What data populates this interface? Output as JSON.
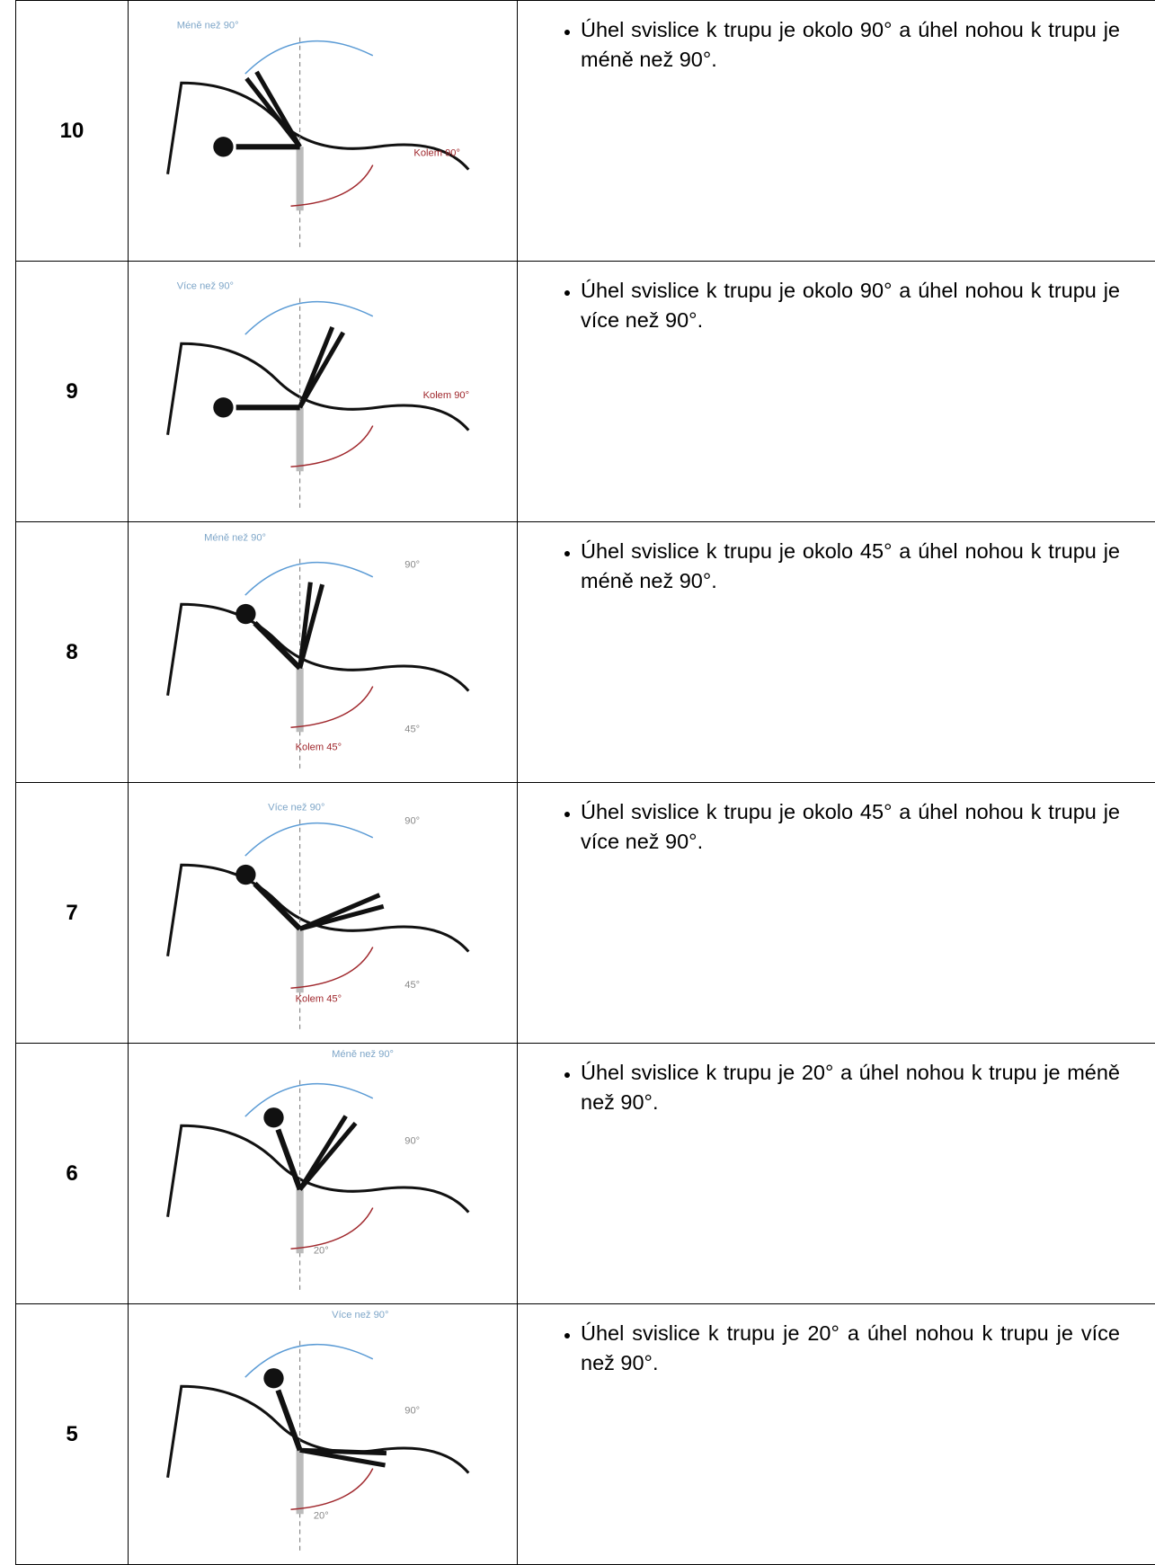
{
  "table": {
    "rows": [
      {
        "score": "10",
        "labels": [
          "Méně než 90°",
          "Kolem 90°"
        ],
        "text": "Úhel svislice k trupu je okolo 90° a úhel nohou k trupu je méně než 90°."
      },
      {
        "score": "9",
        "labels": [
          "Více než 90°",
          "Kolem 90°"
        ],
        "text": "Úhel svislice k trupu je okolo 90° a úhel nohou k trupu je více než 90°."
      },
      {
        "score": "8",
        "labels": [
          "Méně než 90°",
          "90°",
          "45°",
          "Kolem 45°"
        ],
        "text": "Úhel svislice k trupu je okolo 45° a úhel nohou k trupu je méně než 90°."
      },
      {
        "score": "7",
        "labels": [
          "Více než 90°",
          "90°",
          "45°",
          "Kolem 45°"
        ],
        "text": "Úhel svislice k trupu je okolo 45° a úhel nohou k trupu je více než 90°."
      },
      {
        "score": "6",
        "labels": [
          "Méně než 90°",
          "90°",
          "20°"
        ],
        "text": "Úhel svislice k trupu je  20° a úhel nohou k trupu je méně než 90°."
      },
      {
        "score": "5",
        "labels": [
          "Více než 90°",
          "90°",
          "20°"
        ],
        "text": "Úhel svislice k trupu je 20° a úhel nohou k trupu je více než 90°."
      }
    ]
  }
}
